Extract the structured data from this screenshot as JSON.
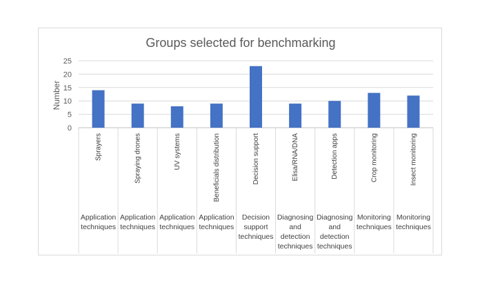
{
  "chart_data": {
    "type": "bar",
    "title": "Groups selected for benchmarking",
    "ylabel": "Number",
    "xlabel": "",
    "ylim": [
      0,
      25
    ],
    "yticks": [
      0,
      5,
      10,
      15,
      20,
      25
    ],
    "grid": true,
    "legend": "none",
    "bar_color": "#4472C4",
    "categories": [
      "Sprayers",
      "Spraying drones",
      "UV systems",
      "Beneficials distribution",
      "Decision support",
      "Elisa/RNA/DNA",
      "Detection apps",
      "Crop monitoring",
      "Insect monitoring"
    ],
    "groups": [
      [
        "Application",
        "techniques"
      ],
      [
        "Application",
        "techniques"
      ],
      [
        "Application",
        "techniques"
      ],
      [
        "Application",
        "techniques"
      ],
      [
        "Decision",
        "support",
        "techniques"
      ],
      [
        "Diagnosing",
        "and",
        "detection",
        "techniques"
      ],
      [
        "Diagnosing",
        "and",
        "detection",
        "techniques"
      ],
      [
        "Monitoring",
        "techniques"
      ],
      [
        "Monitoring",
        "techniques"
      ]
    ],
    "values": [
      14,
      9,
      8,
      9,
      23,
      9,
      10,
      13,
      12
    ]
  }
}
